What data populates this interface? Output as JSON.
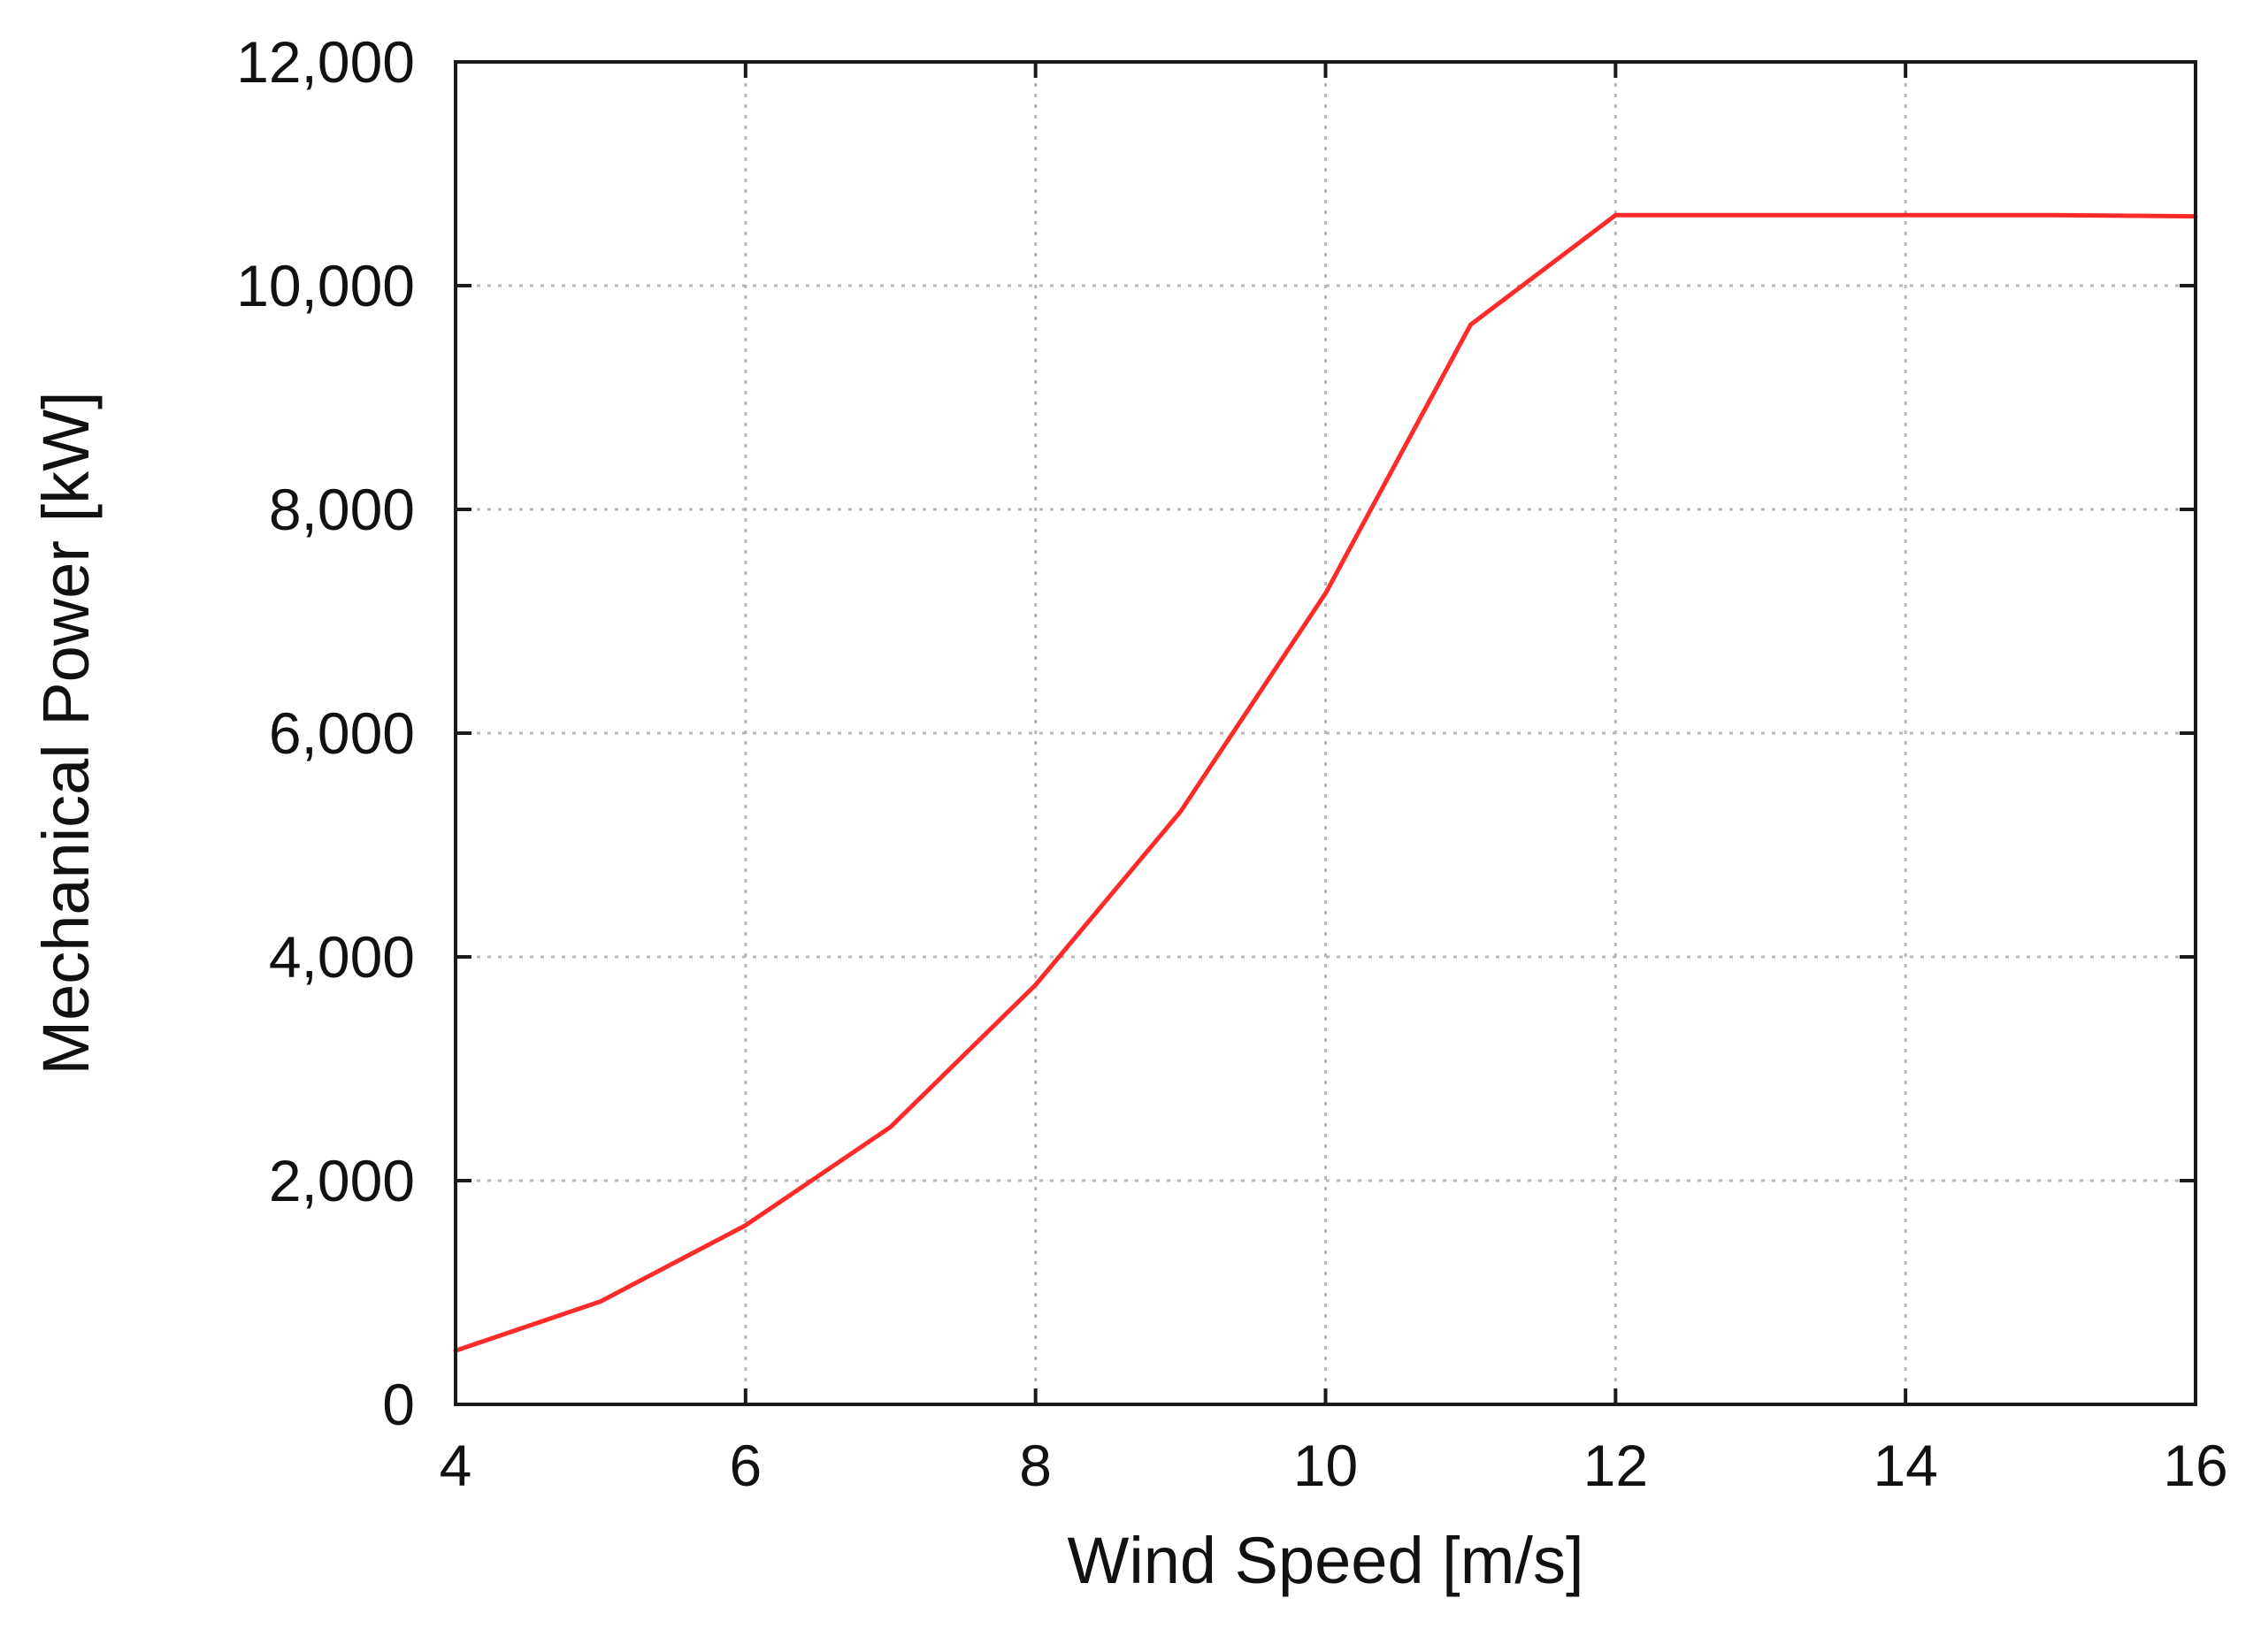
{
  "chart_data": {
    "type": "line",
    "title": "",
    "xlabel": "Wind Speed [m/s]",
    "ylabel": "Mechanical Power [kW]",
    "xlim": [
      4,
      16
    ],
    "ylim": [
      0,
      12000
    ],
    "x_ticks": [
      4,
      6,
      8,
      10,
      12,
      14,
      16
    ],
    "x_tick_labels": [
      "4",
      "6",
      "8",
      "10",
      "12",
      "14",
      "16"
    ],
    "y_ticks": [
      0,
      2000,
      4000,
      6000,
      8000,
      10000,
      12000
    ],
    "y_tick_labels": [
      "0",
      "2,000",
      "4,000",
      "6,000",
      "8,000",
      "10,000",
      "12,000"
    ],
    "grid": true,
    "legend": "none",
    "series": [
      {
        "color": "#ff2a2a",
        "x": [
          4,
          5,
          6,
          7,
          8,
          9,
          10,
          11,
          12,
          13,
          14,
          15,
          16
        ],
        "y": [
          480,
          920,
          1600,
          2480,
          3750,
          5300,
          7250,
          9650,
          10630,
          10630,
          10630,
          10630,
          10620
        ]
      }
    ]
  }
}
